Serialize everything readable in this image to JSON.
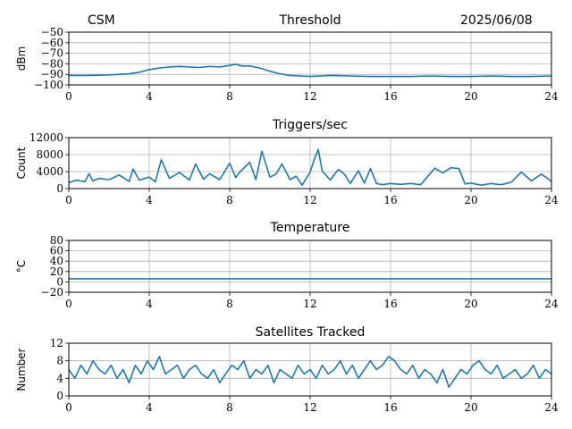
{
  "header": {
    "left": "CSM",
    "date": "2025/06/08"
  },
  "colors": {
    "series": "#1f77b4",
    "grid": "#b0b0b0",
    "axis": "#000000"
  },
  "chart_data": [
    {
      "type": "line",
      "title": "Threshold",
      "ylabel": "dBm",
      "xlim": [
        0,
        24
      ],
      "ylim": [
        -100,
        -50
      ],
      "xticks": [
        0,
        4,
        8,
        12,
        16,
        20,
        24
      ],
      "yticks": [
        -100,
        -90,
        -80,
        -70,
        -60,
        -50
      ],
      "grid": true,
      "series": [
        {
          "x": [
            0,
            1,
            2,
            2.5,
            3,
            3.5,
            4,
            4.5,
            5,
            5.5,
            6,
            6.5,
            7,
            7.5,
            8,
            8.3,
            8.6,
            9,
            9.5,
            10,
            10.5,
            11,
            11.5,
            12,
            12.5,
            13,
            14,
            15,
            16,
            17,
            18,
            19,
            20,
            21,
            22,
            23,
            24
          ],
          "y": [
            -91,
            -91,
            -90.5,
            -90,
            -89.5,
            -88,
            -85.5,
            -84,
            -83,
            -82.5,
            -83,
            -83.5,
            -82.5,
            -83,
            -81.5,
            -80.5,
            -82,
            -82,
            -84,
            -87,
            -89.5,
            -91,
            -91.5,
            -92,
            -91.5,
            -91,
            -91.5,
            -92,
            -92,
            -92,
            -91.5,
            -92,
            -92,
            -91.5,
            -92,
            -92,
            -91.5
          ]
        }
      ]
    },
    {
      "type": "line",
      "title": "Triggers/sec",
      "ylabel": "Count",
      "xlim": [
        0,
        24
      ],
      "ylim": [
        0,
        12000
      ],
      "xticks": [
        0,
        4,
        8,
        12,
        16,
        20,
        24
      ],
      "yticks": [
        0,
        4000,
        8000,
        12000
      ],
      "grid": true,
      "series": [
        {
          "x": [
            0,
            0.4,
            0.8,
            1,
            1.2,
            1.5,
            2,
            2.5,
            3,
            3.2,
            3.5,
            4,
            4.3,
            4.6,
            5,
            5.5,
            6,
            6.3,
            6.7,
            7,
            7.5,
            8,
            8.3,
            8.5,
            9,
            9.3,
            9.6,
            10,
            10.3,
            10.6,
            11,
            11.3,
            11.6,
            12,
            12.2,
            12.4,
            12.6,
            13,
            13.4,
            13.7,
            14,
            14.4,
            14.7,
            15,
            15.3,
            15.6,
            16,
            16.5,
            17,
            17.5,
            17.8,
            18.2,
            18.6,
            19,
            19.4,
            19.7,
            20,
            20.5,
            21,
            21.5,
            22,
            22.5,
            23,
            23.5,
            24
          ],
          "y": [
            1400,
            2000,
            1600,
            3500,
            1800,
            2400,
            2100,
            3200,
            1700,
            4600,
            2000,
            2700,
            1600,
            6800,
            2400,
            3800,
            2000,
            5800,
            2200,
            3500,
            2100,
            6000,
            2600,
            3900,
            6200,
            2100,
            8800,
            2700,
            3400,
            5800,
            2100,
            2900,
            800,
            3900,
            6800,
            9200,
            4200,
            2000,
            4500,
            3400,
            1200,
            4200,
            1300,
            4700,
            1200,
            900,
            1200,
            1000,
            1200,
            900,
            2600,
            4800,
            3700,
            4900,
            4700,
            1100,
            1300,
            800,
            1200,
            900,
            1500,
            3900,
            1800,
            3400,
            1700
          ]
        }
      ]
    },
    {
      "type": "line",
      "title": "Temperature",
      "ylabel": "°C",
      "xlim": [
        0,
        24
      ],
      "ylim": [
        -20,
        80
      ],
      "xticks": [
        0,
        4,
        8,
        12,
        16,
        20,
        24
      ],
      "yticks": [
        -20,
        0,
        20,
        40,
        60,
        80
      ],
      "grid": true,
      "series": [
        {
          "x": [
            0,
            24
          ],
          "y": [
            6,
            6
          ]
        }
      ]
    },
    {
      "type": "line",
      "title": "Satellites Tracked",
      "ylabel": "Number",
      "xlim": [
        0,
        24
      ],
      "ylim": [
        0,
        12
      ],
      "xticks": [
        0,
        4,
        8,
        12,
        16,
        20,
        24
      ],
      "yticks": [
        0,
        4,
        8,
        12
      ],
      "grid": true,
      "series": [
        {
          "x": [
            0,
            0.3,
            0.6,
            0.9,
            1.2,
            1.5,
            1.8,
            2.1,
            2.4,
            2.7,
            3,
            3.3,
            3.6,
            3.9,
            4.2,
            4.5,
            4.8,
            5.1,
            5.4,
            5.7,
            6,
            6.3,
            6.6,
            6.9,
            7.2,
            7.5,
            7.8,
            8.1,
            8.4,
            8.7,
            9,
            9.3,
            9.6,
            9.9,
            10.2,
            10.5,
            10.8,
            11.1,
            11.4,
            11.7,
            12,
            12.3,
            12.6,
            12.9,
            13.2,
            13.5,
            13.8,
            14.1,
            14.4,
            14.7,
            15,
            15.3,
            15.6,
            15.9,
            16.2,
            16.5,
            16.8,
            17.1,
            17.4,
            17.7,
            18,
            18.3,
            18.6,
            18.9,
            19.2,
            19.5,
            19.8,
            20.1,
            20.4,
            20.7,
            21,
            21.3,
            21.6,
            21.9,
            22.2,
            22.5,
            22.8,
            23.1,
            23.4,
            23.7,
            24
          ],
          "y": [
            6,
            4,
            7,
            5,
            8,
            6,
            5,
            7,
            4,
            6,
            3,
            7,
            5,
            8,
            6,
            9,
            5,
            6,
            7,
            4,
            6,
            7,
            5,
            4,
            6,
            3,
            5,
            7,
            6,
            8,
            4,
            6,
            5,
            7,
            3,
            6,
            5,
            4,
            7,
            5,
            6,
            4,
            7,
            5,
            6,
            8,
            5,
            7,
            4,
            6,
            8,
            6,
            7,
            9,
            8,
            6,
            5,
            7,
            4,
            6,
            5,
            3,
            6,
            2,
            4,
            6,
            5,
            7,
            8,
            6,
            5,
            7,
            4,
            5,
            6,
            4,
            5,
            7,
            4,
            6,
            5
          ]
        }
      ]
    }
  ]
}
